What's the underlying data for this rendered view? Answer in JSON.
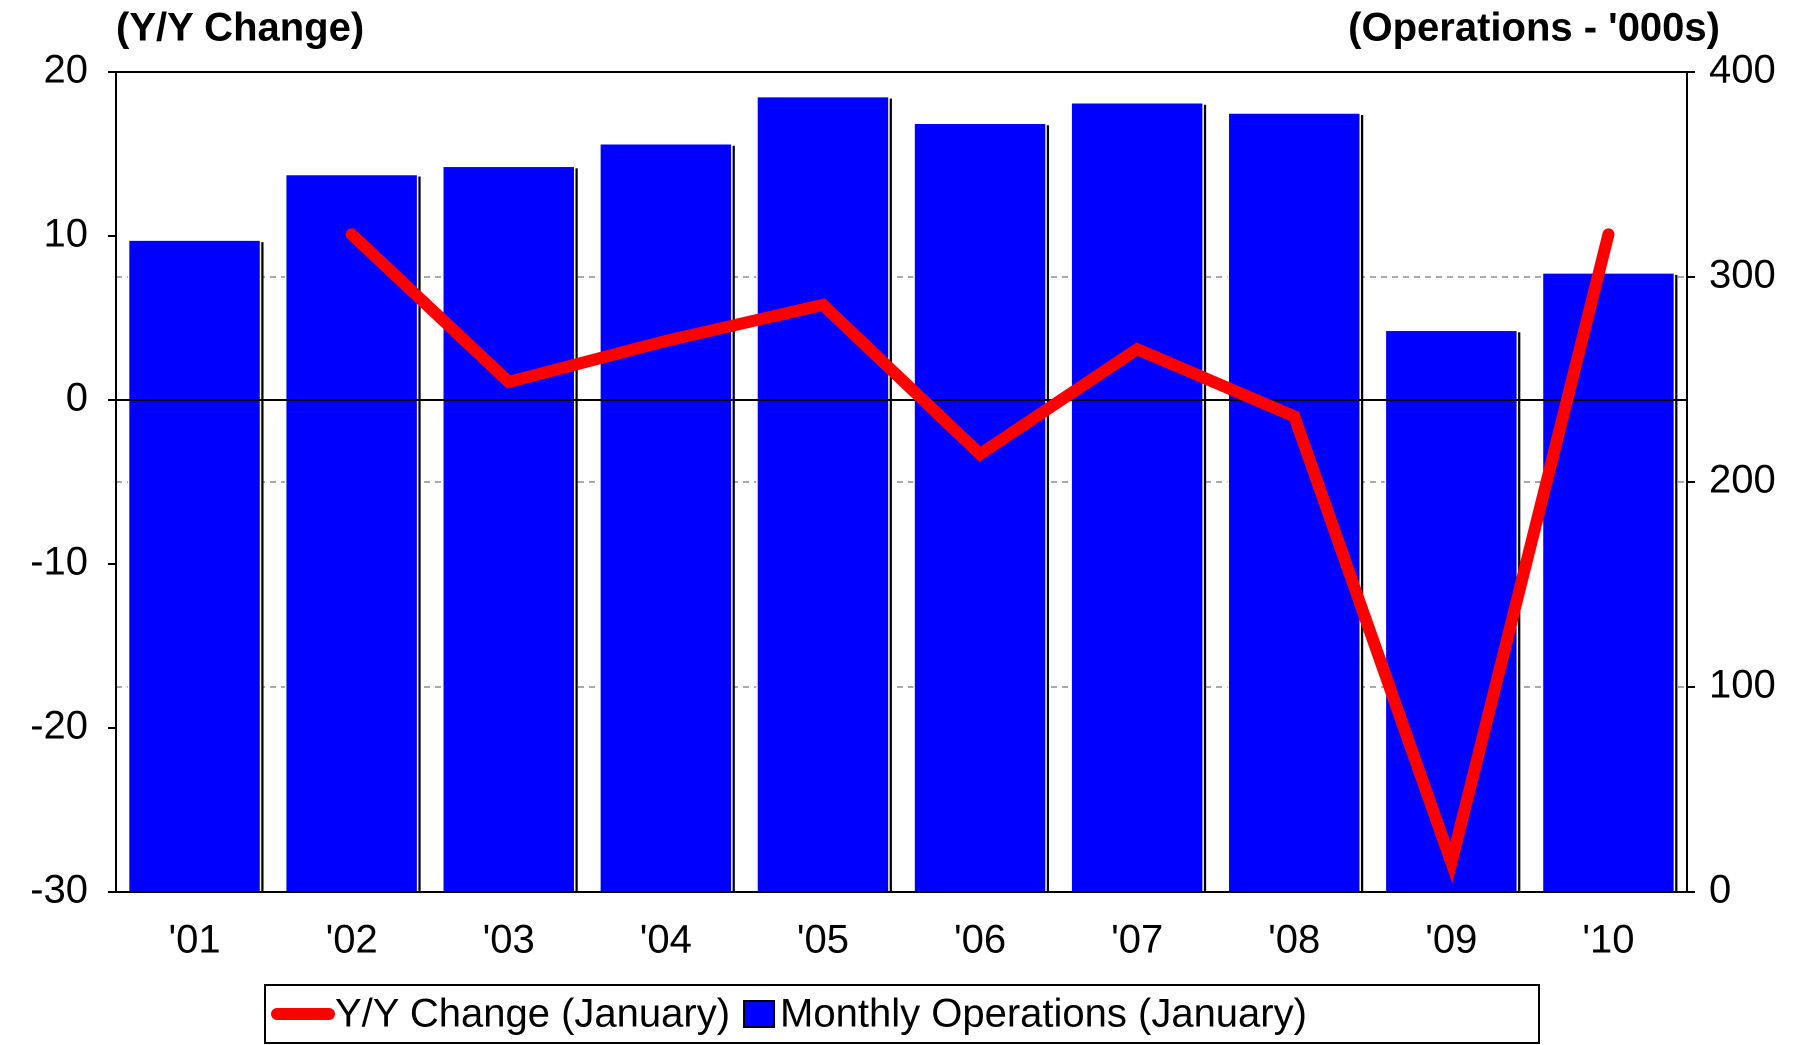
{
  "chart_data": {
    "type": "bar",
    "y_label": "(Y/Y Change)",
    "y2_label": "(Operations - '000s)",
    "categories": [
      "'01",
      "'02",
      "'03",
      "'04",
      "'05",
      "'06",
      "'07",
      "'08",
      "'09",
      "'10"
    ],
    "series": [
      {
        "name": "Y/Y Change (January)",
        "type": "line",
        "color": "#ff0000",
        "axis": "y",
        "values": [
          null,
          10.1,
          1.1,
          3.6,
          5.8,
          -3.3,
          3.1,
          -1.0,
          -28.2,
          10.1
        ]
      },
      {
        "name": "Monthly Operations (January)",
        "type": "bar",
        "color": "#0000ff",
        "axis": "y2",
        "values": [
          318,
          350,
          354,
          365,
          388,
          375,
          385,
          380,
          274,
          302
        ]
      }
    ],
    "ylim": [
      -30,
      20
    ],
    "yticks": [
      -30,
      -20,
      -10,
      0,
      10,
      20
    ],
    "y2lim": [
      0,
      400
    ],
    "y2ticks": [
      0,
      100,
      200,
      300,
      400
    ],
    "grid": true,
    "legend": "bottom"
  }
}
